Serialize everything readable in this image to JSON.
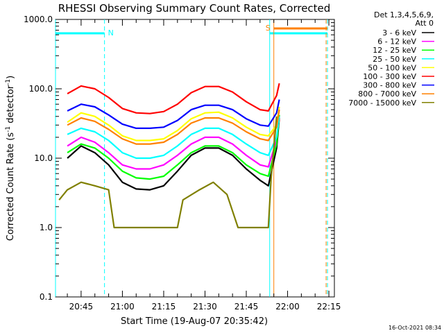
{
  "title": "RHESSI Observing Summary Count Rates, Corrected",
  "legend_header": [
    "Det 1,3,4,5,6,9,",
    "Att 0"
  ],
  "footer_timestamp": "16-Oct-2021 08:34",
  "flag_labels": {
    "night": "N",
    "saa": "S"
  },
  "chart_data": {
    "type": "line",
    "title": "RHESSI Observing Summary Count Rates, Corrected",
    "xlabel": "Start Time (19-Aug-07 20:35:42)",
    "ylabel": "Corrected Count Rate (s⁻¹ detector⁻¹)",
    "y_scale": "log",
    "ylim": [
      0.1,
      1000
    ],
    "xlim": [
      "20:35:42",
      "22:17:00"
    ],
    "x_ticks": [
      "20:45",
      "21:00",
      "21:15",
      "21:30",
      "21:45",
      "22:00",
      "22:15"
    ],
    "y_ticks": [
      "0.1",
      "1.0",
      "10.0",
      "100.0",
      "1000.0"
    ],
    "legend_position": "right",
    "flags": [
      {
        "label": "N",
        "start": "20:35:42",
        "end": "20:53:30"
      },
      {
        "label": "S",
        "start": "21:53:30",
        "end": "22:14:30"
      }
    ],
    "series": [
      {
        "name": "3 - 6 keV",
        "color": "#000000",
        "values": [
          [
            "20:40",
            10
          ],
          [
            "20:45",
            15
          ],
          [
            "20:50",
            12
          ],
          [
            "20:55",
            8
          ],
          [
            "21:00",
            4.5
          ],
          [
            "21:05",
            3.6
          ],
          [
            "21:10",
            3.5
          ],
          [
            "21:15",
            4
          ],
          [
            "21:20",
            6.5
          ],
          [
            "21:25",
            11
          ],
          [
            "21:30",
            14
          ],
          [
            "21:35",
            14
          ],
          [
            "21:40",
            11
          ],
          [
            "21:45",
            7
          ],
          [
            "21:50",
            4.8
          ],
          [
            "21:53",
            4
          ],
          [
            "21:56",
            14
          ],
          [
            "21:57",
            38
          ]
        ]
      },
      {
        "name": "6 - 12 keV",
        "color": "#ff00ff",
        "values": [
          [
            "20:40",
            15
          ],
          [
            "20:45",
            20
          ],
          [
            "20:50",
            17
          ],
          [
            "20:55",
            12
          ],
          [
            "21:00",
            8
          ],
          [
            "21:05",
            7
          ],
          [
            "21:10",
            7
          ],
          [
            "21:15",
            8
          ],
          [
            "21:20",
            11
          ],
          [
            "21:25",
            16
          ],
          [
            "21:30",
            20
          ],
          [
            "21:35",
            20
          ],
          [
            "21:40",
            16
          ],
          [
            "21:45",
            11
          ],
          [
            "21:50",
            8
          ],
          [
            "21:53",
            7.5
          ],
          [
            "21:56",
            18
          ],
          [
            "21:57",
            40
          ]
        ]
      },
      {
        "name": "12 - 25 keV",
        "color": "#00ff00",
        "values": [
          [
            "20:40",
            12
          ],
          [
            "20:45",
            16
          ],
          [
            "20:50",
            14
          ],
          [
            "20:55",
            10
          ],
          [
            "21:00",
            6.5
          ],
          [
            "21:05",
            5.2
          ],
          [
            "21:10",
            5
          ],
          [
            "21:15",
            5.5
          ],
          [
            "21:20",
            8
          ],
          [
            "21:25",
            12
          ],
          [
            "21:30",
            15
          ],
          [
            "21:35",
            15
          ],
          [
            "21:40",
            12
          ],
          [
            "21:45",
            8
          ],
          [
            "21:50",
            6
          ],
          [
            "21:53",
            5.5
          ],
          [
            "21:56",
            16
          ],
          [
            "21:57",
            42
          ]
        ]
      },
      {
        "name": "25 - 50 keV",
        "color": "#00ffff",
        "values": [
          [
            "20:40",
            22
          ],
          [
            "20:45",
            27
          ],
          [
            "20:50",
            24
          ],
          [
            "20:55",
            18
          ],
          [
            "21:00",
            12
          ],
          [
            "21:05",
            10
          ],
          [
            "21:10",
            10
          ],
          [
            "21:15",
            11
          ],
          [
            "21:20",
            15
          ],
          [
            "21:25",
            22
          ],
          [
            "21:30",
            27
          ],
          [
            "21:35",
            27
          ],
          [
            "21:40",
            22
          ],
          [
            "21:45",
            16
          ],
          [
            "21:50",
            12
          ],
          [
            "21:53",
            11
          ],
          [
            "21:56",
            20
          ],
          [
            "21:57",
            40
          ]
        ]
      },
      {
        "name": "50 - 100 keV",
        "color": "#ffff00",
        "values": [
          [
            "20:40",
            33
          ],
          [
            "20:45",
            45
          ],
          [
            "20:50",
            40
          ],
          [
            "20:55",
            30
          ],
          [
            "21:00",
            21
          ],
          [
            "21:05",
            18
          ],
          [
            "21:10",
            18
          ],
          [
            "21:15",
            19
          ],
          [
            "21:20",
            25
          ],
          [
            "21:25",
            37
          ],
          [
            "21:30",
            45
          ],
          [
            "21:35",
            46
          ],
          [
            "21:40",
            38
          ],
          [
            "21:45",
            28
          ],
          [
            "21:50",
            22
          ],
          [
            "21:53",
            21
          ],
          [
            "21:56",
            30
          ],
          [
            "21:57",
            55
          ]
        ]
      },
      {
        "name": "100 - 300 keV",
        "color": "#ff0000",
        "values": [
          [
            "20:40",
            85
          ],
          [
            "20:45",
            110
          ],
          [
            "20:50",
            100
          ],
          [
            "20:55",
            75
          ],
          [
            "21:00",
            52
          ],
          [
            "21:05",
            45
          ],
          [
            "21:10",
            44
          ],
          [
            "21:15",
            47
          ],
          [
            "21:20",
            60
          ],
          [
            "21:25",
            88
          ],
          [
            "21:30",
            108
          ],
          [
            "21:35",
            108
          ],
          [
            "21:40",
            90
          ],
          [
            "21:45",
            65
          ],
          [
            "21:50",
            50
          ],
          [
            "21:53",
            48
          ],
          [
            "21:56",
            80
          ],
          [
            "21:57",
            120
          ]
        ]
      },
      {
        "name": "300 - 800 keV",
        "color": "#0000ff",
        "values": [
          [
            "20:40",
            48
          ],
          [
            "20:45",
            60
          ],
          [
            "20:50",
            55
          ],
          [
            "20:55",
            42
          ],
          [
            "21:00",
            31
          ],
          [
            "21:05",
            27
          ],
          [
            "21:10",
            27
          ],
          [
            "21:15",
            28
          ],
          [
            "21:20",
            35
          ],
          [
            "21:25",
            50
          ],
          [
            "21:30",
            58
          ],
          [
            "21:35",
            58
          ],
          [
            "21:40",
            50
          ],
          [
            "21:45",
            37
          ],
          [
            "21:50",
            30
          ],
          [
            "21:53",
            29
          ],
          [
            "21:56",
            45
          ],
          [
            "21:57",
            70
          ]
        ]
      },
      {
        "name": "800 - 7000 keV",
        "color": "#ff8000",
        "values": [
          [
            "20:40",
            30
          ],
          [
            "20:45",
            38
          ],
          [
            "20:50",
            34
          ],
          [
            "20:55",
            26
          ],
          [
            "21:00",
            19
          ],
          [
            "21:05",
            16
          ],
          [
            "21:10",
            16
          ],
          [
            "21:15",
            17
          ],
          [
            "21:20",
            22
          ],
          [
            "21:25",
            32
          ],
          [
            "21:30",
            38
          ],
          [
            "21:35",
            38
          ],
          [
            "21:40",
            32
          ],
          [
            "21:45",
            24
          ],
          [
            "21:50",
            19
          ],
          [
            "21:53",
            18
          ],
          [
            "21:56",
            28
          ],
          [
            "21:57",
            50
          ]
        ]
      },
      {
        "name": "7000 - 15000 keV",
        "color": "#808000",
        "values": [
          [
            "20:37",
            2.5
          ],
          [
            "20:40",
            3.5
          ],
          [
            "20:45",
            4.5
          ],
          [
            "20:50",
            4
          ],
          [
            "20:55",
            3.5
          ],
          [
            "20:57",
            1
          ],
          [
            "21:20",
            1
          ],
          [
            "21:22",
            2.5
          ],
          [
            "21:28",
            3.5
          ],
          [
            "21:33",
            4.5
          ],
          [
            "21:38",
            3
          ],
          [
            "21:42",
            1
          ],
          [
            "21:53",
            1
          ],
          [
            "21:54",
            5
          ],
          [
            "21:56",
            40
          ]
        ]
      }
    ]
  }
}
